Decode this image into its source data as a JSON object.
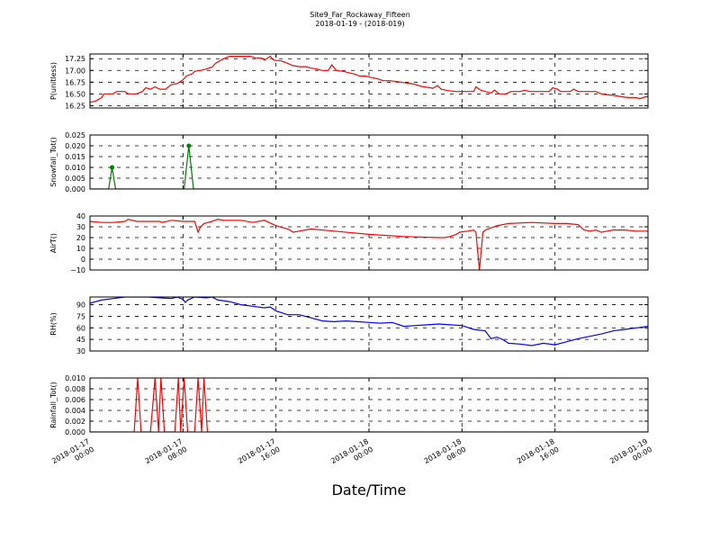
{
  "chart_data": {
    "type": "line",
    "title": "Site9_Far_Rockaway_Fifteen",
    "subtitle": "2018-01-19 - (2018-019)",
    "xlabel": "Date/Time",
    "x_range": [
      "2018-01-17 00:00",
      "2018-01-19 00:00"
    ],
    "x_ticks": [
      {
        "l1": "2018-01-17",
        "l2": "00:00",
        "hour": 0
      },
      {
        "l1": "2018-01-17",
        "l2": "08:00",
        "hour": 8
      },
      {
        "l1": "2018-01-17",
        "l2": "16:00",
        "hour": 16
      },
      {
        "l1": "2018-01-18",
        "l2": "00:00",
        "hour": 24
      },
      {
        "l1": "2018-01-18",
        "l2": "08:00",
        "hour": 32
      },
      {
        "l1": "2018-01-18",
        "l2": "16:00",
        "hour": 40
      },
      {
        "l1": "2018-01-19",
        "l2": "00:00",
        "hour": 48
      }
    ],
    "grid": true,
    "panels": [
      {
        "ylabel": "P(unitless)",
        "ylim": [
          16.2,
          17.35
        ],
        "ticks": [
          16.25,
          16.5,
          16.75,
          17.0,
          17.25
        ],
        "tick_labels": [
          "16.25",
          "16.50",
          "16.75",
          "17.00",
          "17.25"
        ],
        "color": "#ff0000",
        "markers": false,
        "points": [
          [
            0,
            16.32
          ],
          [
            0.5,
            16.35
          ],
          [
            1,
            16.42
          ],
          [
            1.2,
            16.5
          ],
          [
            2,
            16.5
          ],
          [
            2.3,
            16.55
          ],
          [
            3,
            16.55
          ],
          [
            3.3,
            16.5
          ],
          [
            4,
            16.5
          ],
          [
            4.5,
            16.55
          ],
          [
            4.8,
            16.63
          ],
          [
            5.2,
            16.6
          ],
          [
            5.6,
            16.65
          ],
          [
            6,
            16.6
          ],
          [
            6.5,
            16.6
          ],
          [
            7,
            16.7
          ],
          [
            7.5,
            16.72
          ],
          [
            8,
            16.8
          ],
          [
            8.3,
            16.88
          ],
          [
            8.8,
            16.93
          ],
          [
            9,
            16.98
          ],
          [
            9.5,
            17.0
          ],
          [
            10,
            17.03
          ],
          [
            10.5,
            17.07
          ],
          [
            10.8,
            17.15
          ],
          [
            11.5,
            17.25
          ],
          [
            12,
            17.3
          ],
          [
            13,
            17.3
          ],
          [
            13.8,
            17.3
          ],
          [
            14.2,
            17.27
          ],
          [
            14.8,
            17.26
          ],
          [
            15,
            17.22
          ],
          [
            15.5,
            17.3
          ],
          [
            15.8,
            17.22
          ],
          [
            16.5,
            17.2
          ],
          [
            17,
            17.15
          ],
          [
            17.5,
            17.1
          ],
          [
            18,
            17.08
          ],
          [
            18.6,
            17.08
          ],
          [
            19,
            17.05
          ],
          [
            19.5,
            17.03
          ],
          [
            20,
            17.0
          ],
          [
            20.5,
            17.0
          ],
          [
            20.8,
            17.12
          ],
          [
            21.2,
            17.0
          ],
          [
            21.8,
            16.98
          ],
          [
            22.3,
            16.95
          ],
          [
            22.8,
            16.92
          ],
          [
            23.2,
            16.88
          ],
          [
            23.7,
            16.88
          ],
          [
            24.2,
            16.85
          ],
          [
            24.8,
            16.82
          ],
          [
            25.2,
            16.78
          ],
          [
            25.8,
            16.78
          ],
          [
            26.5,
            16.76
          ],
          [
            27,
            16.74
          ],
          [
            27.6,
            16.72
          ],
          [
            28,
            16.7
          ],
          [
            28.5,
            16.66
          ],
          [
            29,
            16.64
          ],
          [
            29.5,
            16.62
          ],
          [
            29.9,
            16.68
          ],
          [
            30.2,
            16.6
          ],
          [
            30.8,
            16.57
          ],
          [
            31.5,
            16.55
          ],
          [
            32.5,
            16.55
          ],
          [
            33,
            16.55
          ],
          [
            33.2,
            16.65
          ],
          [
            33.6,
            16.58
          ],
          [
            34,
            16.55
          ],
          [
            34.5,
            16.52
          ],
          [
            34.8,
            16.58
          ],
          [
            35.2,
            16.5
          ],
          [
            35.8,
            16.5
          ],
          [
            36.2,
            16.55
          ],
          [
            37,
            16.55
          ],
          [
            37.4,
            16.58
          ],
          [
            37.8,
            16.55
          ],
          [
            38.5,
            16.55
          ],
          [
            39.5,
            16.55
          ],
          [
            39.8,
            16.63
          ],
          [
            40.2,
            16.6
          ],
          [
            40.5,
            16.55
          ],
          [
            41,
            16.55
          ],
          [
            41.3,
            16.55
          ],
          [
            41.6,
            16.6
          ],
          [
            42,
            16.55
          ],
          [
            42.5,
            16.55
          ],
          [
            43,
            16.55
          ],
          [
            43.5,
            16.55
          ],
          [
            44,
            16.5
          ],
          [
            44.5,
            16.48
          ],
          [
            45,
            16.47
          ],
          [
            45.5,
            16.45
          ],
          [
            46,
            16.43
          ],
          [
            46.5,
            16.42
          ],
          [
            47,
            16.42
          ],
          [
            47.3,
            16.4
          ],
          [
            47.7,
            16.43
          ],
          [
            48,
            16.45
          ]
        ]
      },
      {
        "ylabel": "Snowfall_Tot()",
        "ylim": [
          0,
          0.025
        ],
        "ticks": [
          0.0,
          0.005,
          0.01,
          0.015,
          0.02,
          0.025
        ],
        "tick_labels": [
          "0.000",
          "0.005",
          "0.010",
          "0.015",
          "0.020",
          "0.025"
        ],
        "color": "#007f00",
        "markers": true,
        "points": [
          [
            0,
            0
          ],
          [
            1.6,
            0
          ],
          [
            1.9,
            0.01
          ],
          [
            2.2,
            0
          ],
          [
            8.1,
            0
          ],
          [
            8.5,
            0.02
          ],
          [
            8.9,
            0
          ],
          [
            48,
            0
          ]
        ]
      },
      {
        "ylabel": "AirT()",
        "ylim": [
          -10,
          40
        ],
        "ticks": [
          -10,
          0,
          10,
          20,
          30,
          40
        ],
        "tick_labels": [
          "−10",
          "0",
          "10",
          "20",
          "30",
          "40"
        ],
        "color": "#ff0000",
        "markers": false,
        "points": [
          [
            0,
            35
          ],
          [
            1,
            34
          ],
          [
            2,
            34
          ],
          [
            3,
            35
          ],
          [
            3.3,
            37
          ],
          [
            4,
            35
          ],
          [
            5,
            35
          ],
          [
            6,
            35
          ],
          [
            6.2,
            34
          ],
          [
            7,
            36
          ],
          [
            8,
            35
          ],
          [
            9,
            35
          ],
          [
            9.3,
            25
          ],
          [
            9.5,
            30
          ],
          [
            9.8,
            33
          ],
          [
            10.5,
            35
          ],
          [
            11,
            37
          ],
          [
            11.5,
            36
          ],
          [
            12,
            36
          ],
          [
            13,
            36
          ],
          [
            14,
            34
          ],
          [
            15,
            36
          ],
          [
            16,
            31
          ],
          [
            17,
            28
          ],
          [
            17.5,
            25
          ],
          [
            18,
            26
          ],
          [
            18.5,
            27
          ],
          [
            19,
            28
          ],
          [
            21,
            26
          ],
          [
            24,
            23
          ],
          [
            27,
            21
          ],
          [
            30,
            20
          ],
          [
            30.5,
            20
          ],
          [
            31,
            21
          ],
          [
            31.5,
            23
          ],
          [
            31.8,
            25
          ],
          [
            32.5,
            26
          ],
          [
            33,
            27
          ],
          [
            33.2,
            25
          ],
          [
            33.5,
            -10
          ],
          [
            33.8,
            25
          ],
          [
            34,
            27
          ],
          [
            35,
            31
          ],
          [
            36,
            33
          ],
          [
            38,
            34
          ],
          [
            40,
            33
          ],
          [
            41,
            33
          ],
          [
            42,
            32
          ],
          [
            42.5,
            27
          ],
          [
            43,
            26
          ],
          [
            43.5,
            27
          ],
          [
            44,
            25
          ],
          [
            44.5,
            26
          ],
          [
            45,
            27
          ],
          [
            46,
            27
          ],
          [
            47,
            26
          ],
          [
            48,
            26
          ]
        ]
      },
      {
        "ylabel": "RH(%)",
        "ylim": [
          30,
          100
        ],
        "ticks": [
          30,
          45,
          60,
          75,
          90
        ],
        "tick_labels": [
          "30",
          "45",
          "60",
          "75",
          "90"
        ],
        "color": "#0000ff",
        "markers": false,
        "points": [
          [
            0,
            92
          ],
          [
            1,
            96
          ],
          [
            2,
            98
          ],
          [
            3,
            100
          ],
          [
            4,
            100
          ],
          [
            5,
            100
          ],
          [
            6,
            99
          ],
          [
            7,
            98
          ],
          [
            7.5,
            100
          ],
          [
            8,
            97
          ],
          [
            8.2,
            93
          ],
          [
            8.4,
            96
          ],
          [
            9,
            100
          ],
          [
            10,
            99
          ],
          [
            10.5,
            100
          ],
          [
            11,
            96
          ],
          [
            12,
            94
          ],
          [
            13,
            90
          ],
          [
            14,
            88
          ],
          [
            15,
            86
          ],
          [
            15.5,
            87
          ],
          [
            16,
            82
          ],
          [
            17,
            77
          ],
          [
            18,
            77
          ],
          [
            19,
            73
          ],
          [
            20,
            69
          ],
          [
            21,
            68
          ],
          [
            22,
            69
          ],
          [
            23,
            68
          ],
          [
            24,
            67
          ],
          [
            25,
            66
          ],
          [
            26,
            67
          ],
          [
            27,
            62
          ],
          [
            28,
            63
          ],
          [
            29,
            64
          ],
          [
            30,
            65
          ],
          [
            31,
            64
          ],
          [
            32,
            63
          ],
          [
            33,
            58
          ],
          [
            34,
            56
          ],
          [
            34.5,
            46
          ],
          [
            35,
            48
          ],
          [
            35.5,
            45
          ],
          [
            36,
            40
          ],
          [
            37,
            39
          ],
          [
            38,
            37
          ],
          [
            39,
            40
          ],
          [
            40,
            38
          ],
          [
            41,
            42
          ],
          [
            42,
            46
          ],
          [
            43,
            49
          ],
          [
            44,
            52
          ],
          [
            45,
            56
          ],
          [
            46,
            58
          ],
          [
            47,
            60
          ],
          [
            48,
            62
          ]
        ]
      },
      {
        "ylabel": "Rainfall_Tot()",
        "ylim": [
          0,
          0.01
        ],
        "ticks": [
          0.0,
          0.002,
          0.004,
          0.006,
          0.008,
          0.01
        ],
        "tick_labels": [
          "0.000",
          "0.002",
          "0.004",
          "0.006",
          "0.008",
          "0.010"
        ],
        "color": "#ff0000",
        "markers": false,
        "points": [
          [
            0,
            0
          ],
          [
            3.8,
            0
          ],
          [
            4.1,
            0.01
          ],
          [
            4.4,
            0
          ],
          [
            5.2,
            0
          ],
          [
            5.6,
            0.012
          ],
          [
            5.9,
            0
          ],
          [
            6.1,
            0.012
          ],
          [
            6.4,
            0
          ],
          [
            7.3,
            0
          ],
          [
            7.6,
            0.012
          ],
          [
            7.8,
            0
          ],
          [
            8.1,
            0.012
          ],
          [
            8.4,
            0
          ],
          [
            9.0,
            0
          ],
          [
            9.3,
            0.012
          ],
          [
            9.6,
            0
          ],
          [
            9.8,
            0.012
          ],
          [
            10.1,
            0
          ],
          [
            48,
            0
          ]
        ]
      }
    ]
  }
}
